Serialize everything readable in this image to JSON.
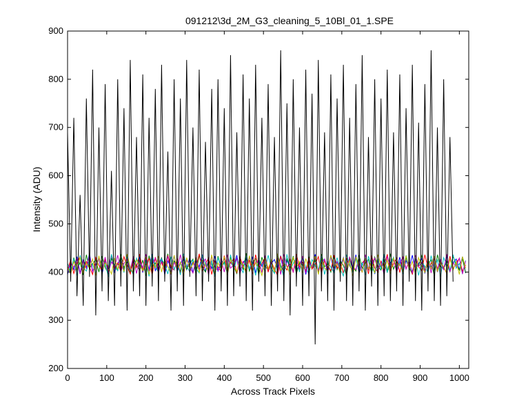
{
  "chart_data": {
    "type": "line",
    "title": "091212\\3d_2M_G3_cleaning_5_10Bl_01_1.SPE",
    "xlabel": "Across Track Pixels",
    "ylabel": "Intensity (ADU)",
    "xlim": [
      0,
      1024
    ],
    "ylim": [
      200,
      900
    ],
    "xticks": [
      0,
      100,
      200,
      300,
      400,
      500,
      600,
      700,
      800,
      900,
      1000
    ],
    "yticks": [
      200,
      300,
      400,
      500,
      600,
      700,
      800,
      900
    ],
    "grid": false,
    "legend": "none",
    "x_start": 0,
    "x_step": 8,
    "series": [
      {
        "color": "#000000",
        "values": [
          690,
          380,
          720,
          350,
          560,
          330,
          760,
          390,
          820,
          310,
          700,
          360,
          790,
          340,
          610,
          330,
          800,
          370,
          740,
          320,
          840,
          360,
          680,
          350,
          810,
          330,
          720,
          370,
          780,
          340,
          830,
          380,
          650,
          320,
          800,
          360,
          760,
          330,
          840,
          390,
          700,
          350,
          820,
          340,
          670,
          380,
          780,
          320,
          800,
          360,
          740,
          330,
          850,
          350,
          690,
          370,
          810,
          340,
          760,
          320,
          830,
          380,
          720,
          350,
          790,
          330,
          680,
          360,
          860,
          340,
          750,
          310,
          800,
          370,
          700,
          330,
          820,
          350,
          770,
          250,
          840,
          360,
          690,
          340,
          810,
          320,
          760,
          380,
          830,
          340,
          720,
          330,
          790,
          360,
          850,
          320,
          680,
          370,
          800,
          330,
          760,
          350,
          820,
          340,
          690,
          360,
          810,
          330,
          740,
          380,
          830,
          340,
          710,
          320,
          790,
          360,
          860,
          340,
          700,
          330,
          800,
          350,
          680,
          380
        ]
      },
      {
        "color": "#0000ff",
        "values": [
          395,
          420,
          405,
          432,
          398,
          425,
          410,
          438,
          402,
          415,
          428,
          396,
          422,
          408,
          435,
          400,
          418,
          427,
          404,
          433,
          397,
          421,
          412,
          430,
          399,
          424,
          406,
          437,
          403,
          416,
          429,
          395,
          423,
          409,
          434,
          401,
          419,
          426,
          405,
          431,
          398,
          422,
          411,
          436,
          400,
          425,
          407,
          433,
          402,
          417,
          428,
          396,
          421,
          410,
          435,
          399,
          420,
          427,
          404,
          432,
          398,
          423,
          412,
          430,
          401,
          418,
          426,
          406,
          434,
          397,
          424,
          409,
          431,
          403,
          416,
          429,
          395,
          422,
          408,
          437,
          400,
          419,
          427,
          405,
          433,
          399,
          421,
          411,
          430,
          402,
          425,
          407,
          436,
          398,
          417,
          428,
          404,
          432,
          396,
          423,
          410,
          434,
          401,
          420,
          426,
          406,
          431,
          399,
          424,
          409,
          435,
          403,
          418,
          428,
          397,
          422,
          411,
          430,
          400,
          425,
          407,
          433,
          402,
          419,
          427,
          405,
          432,
          398
        ]
      },
      {
        "color": "#008000",
        "values": [
          412,
          398,
          430,
          405,
          420,
          394,
          436,
          408,
          417,
          426,
          400,
          433,
          410,
          396,
          428,
          415,
          403,
          437,
          409,
          421,
          399,
          431,
          414,
          404,
          425,
          392,
          434,
          411,
          419,
          401,
          429,
          407,
          438,
          397,
          423,
          413,
          402,
          432,
          406,
          418,
          427,
          395,
          435,
          410,
          400,
          424,
          416,
          391,
          433,
          408,
          421,
          403,
          430,
          412,
          397,
          426,
          405,
          439,
          402,
          419,
          428,
          394,
          431,
          411,
          406,
          422,
          399,
          436,
          413,
          401,
          427,
          409,
          433,
          396,
          420,
          415,
          403,
          430,
          407,
          425,
          398,
          437,
          411,
          417,
          400,
          432,
          405,
          423,
          414,
          393,
          429,
          410,
          402,
          435,
          408,
          419,
          426,
          397,
          431,
          412,
          404,
          424,
          399,
          438,
          406,
          421,
          415,
          401,
          430,
          409,
          396,
          427,
          413,
          434,
          403,
          418,
          425,
          392,
          436,
          411,
          407,
          422,
          400,
          433,
          416,
          404,
          428,
          398
        ]
      },
      {
        "color": "#ff0000",
        "values": [
          405,
          425,
          397,
          418,
          433,
          400,
          422,
          410,
          395,
          430,
          414,
          403,
          427,
          398,
          436,
          408,
          419,
          401,
          432,
          412,
          396,
          424,
          409,
          437,
          402,
          416,
          428,
          394,
          431,
          407,
          421,
          399,
          435,
          411,
          404,
          426,
          397,
          433,
          413,
          400,
          420,
          408,
          438,
          403,
          417,
          429,
          395,
          423,
          410,
          401,
          434,
          406,
          419,
          427,
          398,
          431,
          412,
          402,
          425,
          396,
          436,
          409,
          418,
          430,
          400,
          422,
          407,
          393,
          433,
          414,
          404,
          426,
          399,
          437,
          411,
          420,
          401,
          429,
          406,
          416,
          432,
          397,
          424,
          410,
          403,
          435,
          408,
          421,
          398,
          428,
          413,
          402,
          431,
          405,
          419,
          426,
          396,
          434,
          409,
          400,
          423,
          412,
          437,
          404,
          417,
          429,
          399,
          432,
          407,
          421,
          395,
          426,
          411,
          403,
          436,
          408,
          418,
          430,
          401,
          424,
          410,
          397,
          433,
          406,
          420,
          428,
          402,
          415
        ]
      },
      {
        "color": "#00bfbf",
        "values": [
          418,
          400,
          428,
          393,
          435,
          409,
          402,
          424,
          415,
          397,
          431,
          406,
          420,
          390,
          437,
          411,
          403,
          426,
          399,
          433,
          408,
          395,
          429,
          413,
          404,
          422,
          391,
          436,
          410,
          400,
          427,
          416,
          396,
          432,
          405,
          421,
          394,
          438,
          412,
          401,
          425,
          407,
          398,
          434,
          417,
          402,
          423,
          392,
          430,
          409,
          419,
          396,
          436,
          404,
          428,
          411,
          399,
          433,
          406,
          420,
          393,
          427,
          414,
          402,
          435,
          408,
          397,
          424,
          411,
          391,
          437,
          403,
          418,
          429,
          400,
          432,
          409,
          396,
          426,
          413,
          404,
          434,
          395,
          421,
          410,
          399,
          430,
          406,
          392,
          436,
          415,
          401,
          428,
          403,
          419,
          394,
          433,
          411,
          398,
          425,
          407,
          437,
          400,
          416,
          431,
          404,
          422,
          396,
          435,
          409,
          402,
          427,
          393,
          420,
          412,
          399,
          434,
          405,
          426,
          391,
          430,
          414,
          401,
          436,
          408,
          418,
          397,
          424
        ]
      },
      {
        "color": "#bf00bf",
        "values": [
          402,
          419,
          410,
          427,
          396,
          423,
          407,
          434,
          400,
          416,
          428,
          404,
          431,
          398,
          421,
          411,
          435,
          401,
          418,
          426,
          405,
          432,
          397,
          424,
          409,
          437,
          403,
          417,
          429,
          399,
          422,
          412,
          433,
          395,
          420,
          408,
          436,
          402,
          425,
          410,
          398,
          430,
          406,
          419,
          427,
          394,
          433,
          411,
          403,
          426,
          400,
          436,
          408,
          415,
          428,
          396,
          422,
          413,
          431,
          404,
          418,
          425,
          399,
          434,
          407,
          421,
          402,
          429,
          395,
          437,
          411,
          416,
          400,
          426,
          406,
          433,
          398,
          423,
          410,
          430,
          403,
          419,
          427,
          396,
          435,
          409,
          422,
          401,
          428,
          397,
          432,
          412,
          405,
          424,
          399,
          436,
          408,
          417,
          429,
          403,
          421,
          394,
          433,
          410,
          426,
          400,
          418,
          431,
          406,
          424,
          397,
          435,
          411,
          420,
          402,
          428,
          398,
          432,
          407,
          425,
          404,
          437,
          401,
          419,
          412,
          429,
          396,
          423
        ]
      },
      {
        "color": "#bfbf00",
        "values": [
          410,
          396,
          422,
          405,
          431,
          399,
          418,
          408,
          427,
          393,
          434,
          402,
          419,
          412,
          396,
          429,
          406,
          423,
          401,
          437,
          410,
          398,
          425,
          414,
          403,
          431,
          395,
          420,
          409,
          433,
          400,
          426,
          411,
          397,
          435,
          405,
          421,
          392,
          430,
          407,
          416,
          428,
          399,
          424,
          413,
          402,
          436,
          398,
          419,
          406,
          432,
          394,
          427,
          410,
          401,
          423,
          415,
          397,
          434,
          404,
          420,
          411,
          393,
          429,
          407,
          425,
          400,
          438,
          403,
          417,
          412,
          396,
          431,
          409,
          422,
          399,
          428,
          405,
          414,
          433,
          395,
          426,
          408,
          402,
          435,
          411,
          418,
          397,
          430,
          404,
          424,
          392,
          432,
          410,
          400,
          427,
          406,
          421,
          398,
          436,
          413,
          403,
          425,
          396,
          429,
          409,
          417,
          401,
          434,
          405,
          422,
          394,
          430,
          412,
          399,
          426,
          407,
          433,
          402,
          419,
          411,
          397,
          428,
          404,
          421,
          395,
          432,
          408
        ]
      }
    ]
  }
}
